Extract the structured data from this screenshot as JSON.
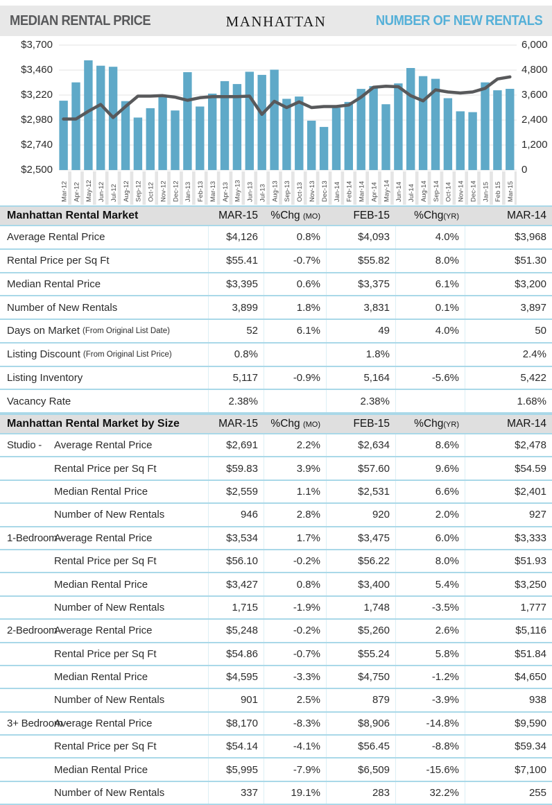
{
  "header": {
    "left_title": "MEDIAN RENTAL PRICE",
    "center_title": "MANHATTAN",
    "right_title": "NUMBER OF NEW RENTALS"
  },
  "colors": {
    "bar": "#5FA9C8",
    "line": "#58595B",
    "separator": "#A9D8E8",
    "band": "#E8E8E8",
    "right_title_teal": "#55B0D8"
  },
  "chart_data": {
    "type": "bar",
    "categories": [
      "Mar-12",
      "Apr-12",
      "May-12",
      "Jun-12",
      "Jul-12",
      "Aug-12",
      "Sep-12",
      "Oct-12",
      "Nov-12",
      "Dec-12",
      "Jan-13",
      "Feb-13",
      "Mar-13",
      "Apr-13",
      "May-13",
      "Jun-13",
      "Jul-13",
      "Aug-13",
      "Sep-13",
      "Oct-13",
      "Nov-13",
      "Dec-13",
      "Jan-14",
      "Feb-14",
      "Mar-14",
      "Apr-14",
      "May-14",
      "Jun-14",
      "Jul-14",
      "Aug-14",
      "Sep-14",
      "Oct-14",
      "Nov-14",
      "Dec-14",
      "Jan-15",
      "Feb 15",
      "Mar-15"
    ],
    "series": [
      {
        "name": "Number of New Rentals",
        "type": "bar",
        "axis": "right",
        "values": [
          3330,
          4210,
          5270,
          5010,
          4960,
          3310,
          2520,
          2970,
          3600,
          2860,
          4700,
          3050,
          3670,
          4270,
          4130,
          4720,
          4570,
          4820,
          3420,
          3530,
          2370,
          2070,
          2990,
          3270,
          3897,
          4030,
          3160,
          4160,
          4900,
          4510,
          4380,
          3450,
          2820,
          2780,
          4210,
          3831,
          3899
        ]
      },
      {
        "name": "Median Rental Price",
        "type": "line",
        "axis": "left",
        "values": [
          2990,
          2990,
          3065,
          3130,
          3005,
          3110,
          3210,
          3210,
          3215,
          3200,
          3170,
          3195,
          3205,
          3205,
          3205,
          3210,
          3035,
          3160,
          3100,
          3155,
          3100,
          3110,
          3110,
          3125,
          3200,
          3295,
          3305,
          3300,
          3215,
          3165,
          3270,
          3250,
          3240,
          3250,
          3285,
          3375,
          3395
        ]
      }
    ],
    "left_axis": {
      "ticks": [
        "$3,700",
        "$3,460",
        "$3,220",
        "$2,980",
        "$2,740",
        "$2,500"
      ],
      "min": 2500,
      "max": 3700
    },
    "right_axis": {
      "ticks": [
        "6,000",
        "4,800",
        "3,600",
        "2,400",
        "1,200",
        "0"
      ],
      "min": 0,
      "max": 6000
    },
    "grid": true,
    "legend_position": "none"
  },
  "market_table": {
    "title": "Manhattan Rental Market",
    "columns": [
      {
        "t": "MAR-15",
        "s": ""
      },
      {
        "t": "%Chg ",
        "s": "(MO)"
      },
      {
        "t": "FEB-15",
        "s": ""
      },
      {
        "t": "%Chg",
        "s": "(YR)"
      },
      {
        "t": "MAR-14",
        "s": ""
      }
    ],
    "rows": [
      {
        "label": "Average Rental Price",
        "sub": "",
        "values": [
          "$4,126",
          "0.8%",
          "$4,093",
          "4.0%",
          "$3,968"
        ]
      },
      {
        "label": "Rental Price per Sq Ft",
        "sub": "",
        "values": [
          "$55.41",
          "-0.7%",
          "$55.82",
          "8.0%",
          "$51.30"
        ]
      },
      {
        "label": "Median Rental Price",
        "sub": "",
        "values": [
          "$3,395",
          "0.6%",
          "$3,375",
          "6.1%",
          "$3,200"
        ]
      },
      {
        "label": "Number of New Rentals",
        "sub": "",
        "values": [
          "3,899",
          "1.8%",
          "3,831",
          "0.1%",
          "3,897"
        ]
      },
      {
        "label": "Days on Market",
        "sub": "(From Original List Date)",
        "values": [
          "52",
          "6.1%",
          "49",
          "4.0%",
          "50"
        ]
      },
      {
        "label": "Listing Discount",
        "sub": "(From Original List Price)",
        "values": [
          "0.8%",
          "",
          "1.8%",
          "",
          "2.4%"
        ]
      },
      {
        "label": "Listing Inventory",
        "sub": "",
        "values": [
          "5,117",
          "-0.9%",
          "5,164",
          "-5.6%",
          "5,422"
        ]
      },
      {
        "label": "Vacancy Rate",
        "sub": "",
        "values": [
          "2.38%",
          "",
          "2.38%",
          "",
          "1.68%"
        ]
      }
    ]
  },
  "size_table": {
    "title": "Manhattan Rental Market by Size",
    "columns": [
      {
        "t": "MAR-15",
        "s": ""
      },
      {
        "t": "%Chg ",
        "s": "(MO)"
      },
      {
        "t": "FEB-15",
        "s": ""
      },
      {
        "t": "%Chg",
        "s": "(YR)"
      },
      {
        "t": "MAR-14",
        "s": ""
      }
    ],
    "rows": [
      {
        "category": "Studio -",
        "label": "Average Rental Price",
        "values": [
          "$2,691",
          "2.2%",
          "$2,634",
          "8.6%",
          "$2,478"
        ]
      },
      {
        "category": "",
        "label": "Rental Price per Sq Ft",
        "values": [
          "$59.83",
          "3.9%",
          "$57.60",
          "9.6%",
          "$54.59"
        ]
      },
      {
        "category": "",
        "label": "Median Rental Price",
        "values": [
          "$2,559",
          "1.1%",
          "$2,531",
          "6.6%",
          "$2,401"
        ]
      },
      {
        "category": "",
        "label": "Number of New Rentals",
        "values": [
          "946",
          "2.8%",
          "920",
          "2.0%",
          "927"
        ]
      },
      {
        "category": "1-Bedroom -",
        "label": "Average Rental Price",
        "values": [
          "$3,534",
          "1.7%",
          "$3,475",
          "6.0%",
          "$3,333"
        ]
      },
      {
        "category": "",
        "label": "Rental Price per Sq Ft",
        "values": [
          "$56.10",
          "-0.2%",
          "$56.22",
          "8.0%",
          "$51.93"
        ]
      },
      {
        "category": "",
        "label": "Median Rental Price",
        "values": [
          "$3,427",
          "0.8%",
          "$3,400",
          "5.4%",
          "$3,250"
        ]
      },
      {
        "category": "",
        "label": "Number of New Rentals",
        "values": [
          "1,715",
          "-1.9%",
          "1,748",
          "-3.5%",
          "1,777"
        ]
      },
      {
        "category": "2-Bedroom -",
        "label": "Average Rental Price",
        "values": [
          "$5,248",
          "-0.2%",
          "$5,260",
          "2.6%",
          "$5,116"
        ]
      },
      {
        "category": "",
        "label": "Rental Price per Sq Ft",
        "values": [
          "$54.86",
          "-0.7%",
          "$55.24",
          "5.8%",
          "$51.84"
        ]
      },
      {
        "category": "",
        "label": "Median Rental Price",
        "values": [
          "$4,595",
          "-3.3%",
          "$4,750",
          "-1.2%",
          "$4,650"
        ]
      },
      {
        "category": "",
        "label": "Number of New Rentals",
        "values": [
          "901",
          "2.5%",
          "879",
          "-3.9%",
          "938"
        ]
      },
      {
        "category": "3+ Bedroom -",
        "label": "Average Rental Price",
        "values": [
          "$8,170",
          "-8.3%",
          "$8,906",
          "-14.8%",
          "$9,590"
        ]
      },
      {
        "category": "",
        "label": "Rental Price per Sq Ft",
        "values": [
          "$54.14",
          "-4.1%",
          "$56.45",
          "-8.8%",
          "$59.34"
        ]
      },
      {
        "category": "",
        "label": "Median Rental Price",
        "values": [
          "$5,995",
          "-7.9%",
          "$6,509",
          "-15.6%",
          "$7,100"
        ]
      },
      {
        "category": "",
        "label": "Number of New Rentals",
        "values": [
          "337",
          "19.1%",
          "283",
          "32.2%",
          "255"
        ]
      }
    ]
  }
}
